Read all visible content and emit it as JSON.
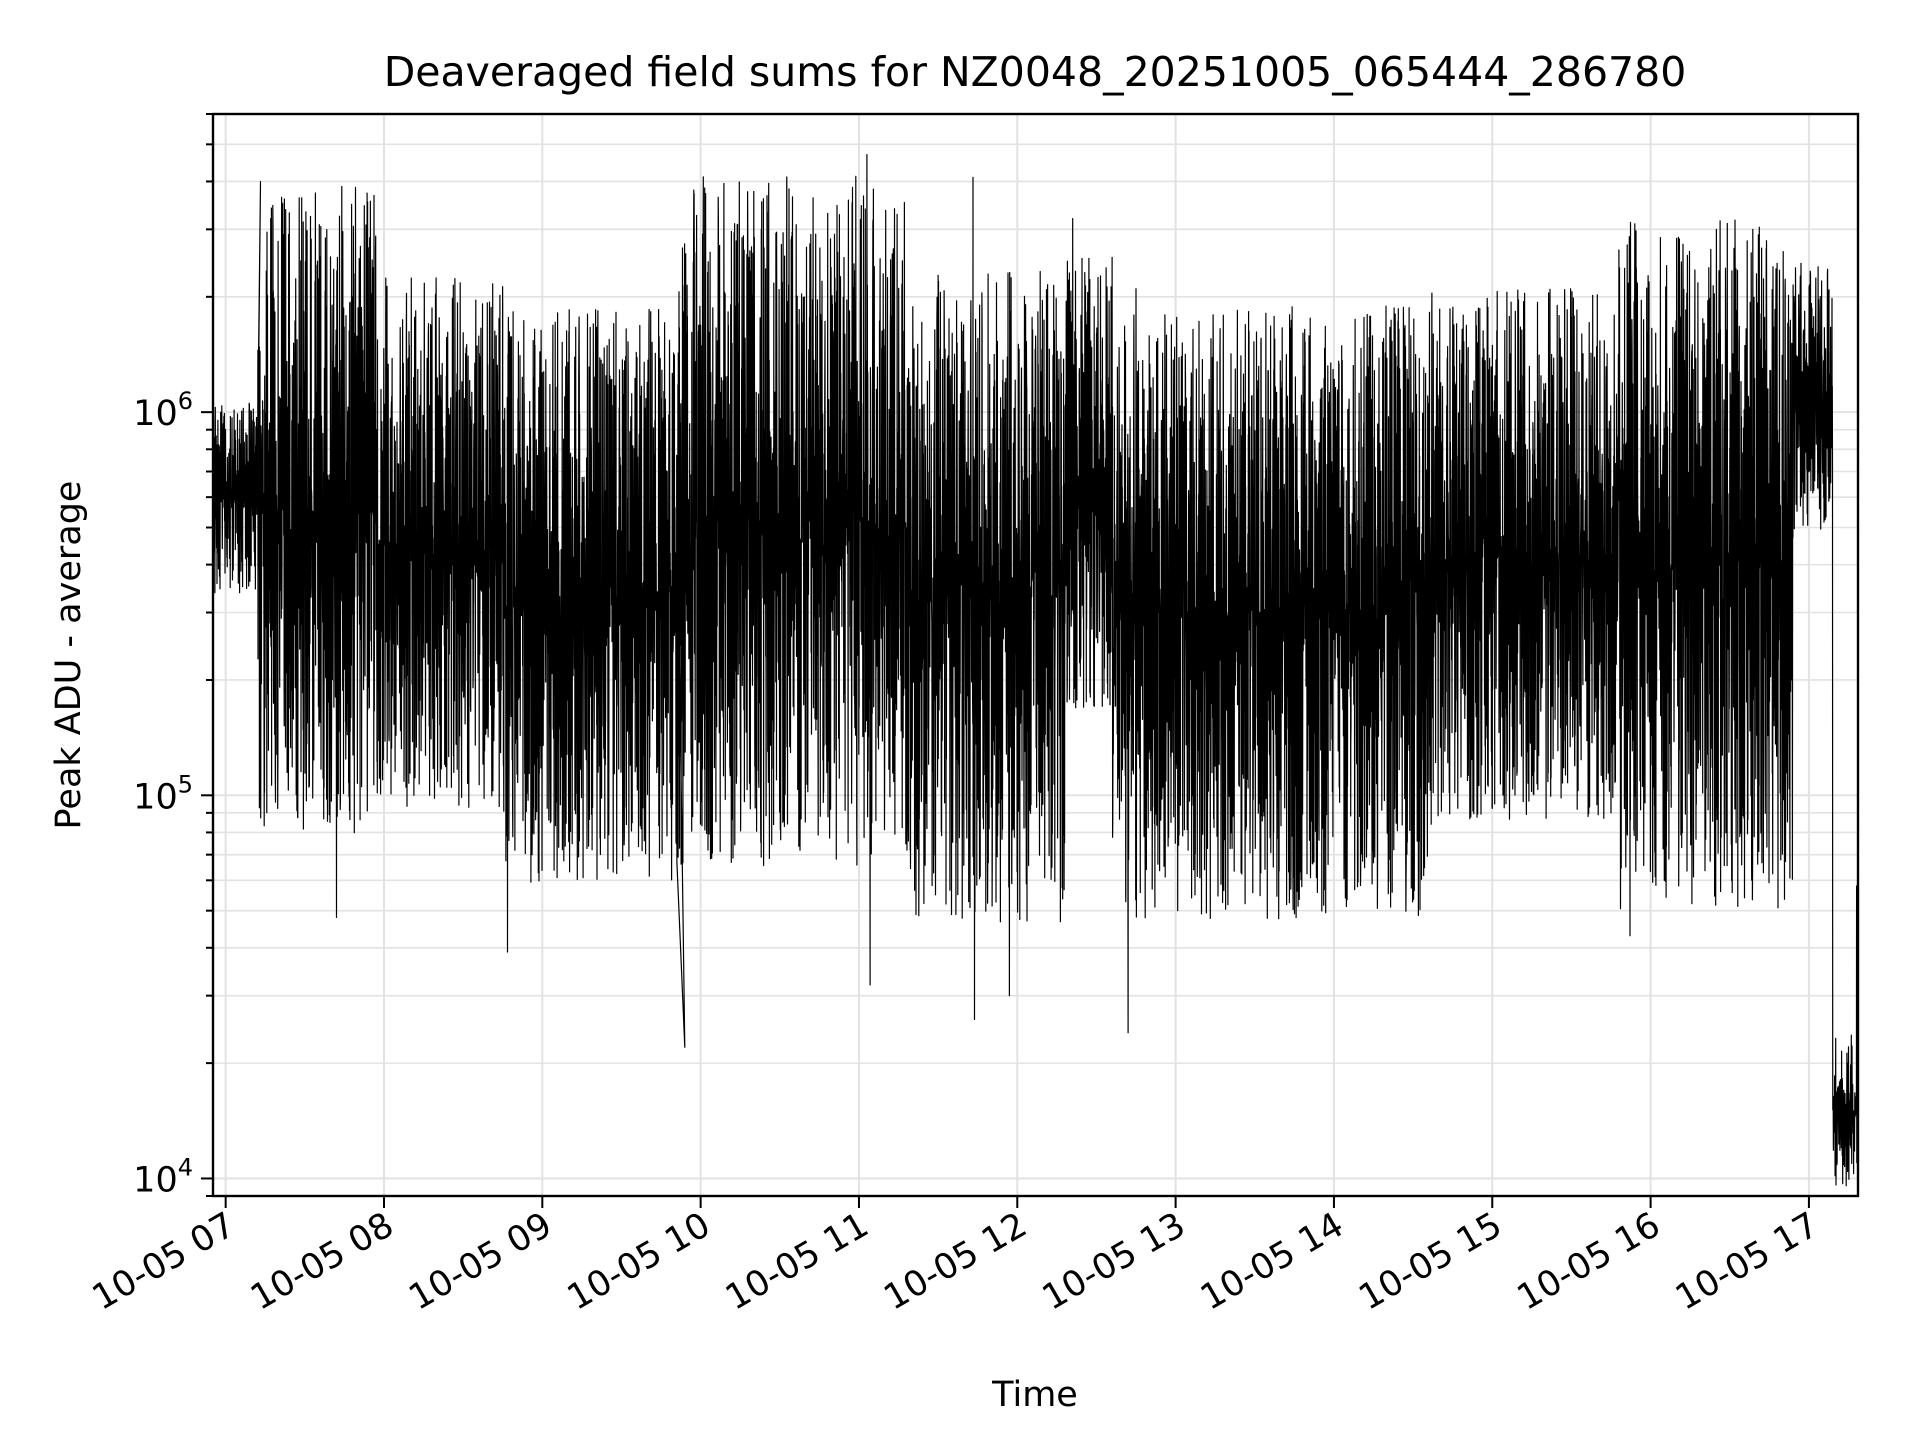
{
  "chart_data": {
    "type": "line",
    "title": "Deaveraged field sums for NZ0048_20251005_065444_286780",
    "xlabel": "Time",
    "ylabel": "Peak ADU - average",
    "yscale": "log",
    "ylim": [
      9000,
      6000000
    ],
    "xlim_hours": [
      6.92,
      17.31
    ],
    "grid": true,
    "x_ticks": [
      {
        "hour": 7,
        "label": "10-05 07"
      },
      {
        "hour": 8,
        "label": "10-05 08"
      },
      {
        "hour": 9,
        "label": "10-05 09"
      },
      {
        "hour": 10,
        "label": "10-05 10"
      },
      {
        "hour": 11,
        "label": "10-05 11"
      },
      {
        "hour": 12,
        "label": "10-05 12"
      },
      {
        "hour": 13,
        "label": "10-05 13"
      },
      {
        "hour": 14,
        "label": "10-05 14"
      },
      {
        "hour": 15,
        "label": "10-05 15"
      },
      {
        "hour": 16,
        "label": "10-05 16"
      },
      {
        "hour": 17,
        "label": "10-05 17"
      }
    ],
    "y_ticks": [
      {
        "value": 10000,
        "base": "10",
        "exp": "4"
      },
      {
        "value": 100000,
        "base": "10",
        "exp": "5"
      },
      {
        "value": 1000000,
        "base": "10",
        "exp": "6"
      }
    ],
    "series": [
      {
        "name": "Peak ADU - average",
        "color": "#000000",
        "segments": [
          {
            "start": 6.92,
            "end": 7.2,
            "median": 600000,
            "spread": 0.25,
            "spikes": [
              {
                "hour": 7.22,
                "value": 4000000
              }
            ]
          },
          {
            "start": 7.2,
            "end": 7.95,
            "median": 550000,
            "spread": 0.85,
            "spikes": [
              {
                "hour": 7.7,
                "value": 48000
              },
              {
                "hour": 7.9,
                "value": 1450000
              }
            ]
          },
          {
            "start": 7.95,
            "end": 8.75,
            "median": 450000,
            "spread": 0.7,
            "spikes": [
              {
                "hour": 8.35,
                "value": 1250000
              },
              {
                "hour": 8.75,
                "value": 1900000
              }
            ]
          },
          {
            "start": 8.75,
            "end": 9.85,
            "median": 330000,
            "spread": 0.75,
            "spikes": [
              {
                "hour": 8.78,
                "value": 39000
              },
              {
                "hour": 9.17,
                "value": 1850000
              },
              {
                "hour": 9.9,
                "value": 22000
              }
            ]
          },
          {
            "start": 9.85,
            "end": 11.3,
            "median": 520000,
            "spread": 0.9,
            "spikes": [
              {
                "hour": 10.33,
                "value": 2600000
              },
              {
                "hour": 11.05,
                "value": 4700000
              },
              {
                "hour": 11.07,
                "value": 32000
              },
              {
                "hour": 11.2,
                "value": 2500000
              }
            ]
          },
          {
            "start": 11.3,
            "end": 12.3,
            "median": 330000,
            "spread": 0.85,
            "spikes": [
              {
                "hour": 11.72,
                "value": 4100000
              },
              {
                "hour": 11.73,
                "value": 26000
              },
              {
                "hour": 11.95,
                "value": 30000
              }
            ]
          },
          {
            "start": 12.3,
            "end": 12.6,
            "median": 650000,
            "spread": 0.6,
            "spikes": [
              {
                "hour": 12.35,
                "value": 3200000
              }
            ]
          },
          {
            "start": 12.6,
            "end": 14.6,
            "median": 300000,
            "spread": 0.8,
            "spikes": [
              {
                "hour": 12.7,
                "value": 24000
              },
              {
                "hour": 12.75,
                "value": 2100000
              }
            ]
          },
          {
            "start": 14.6,
            "end": 15.8,
            "median": 420000,
            "spread": 0.7,
            "spikes": [
              {
                "hour": 15.1,
                "value": 1200000
              }
            ]
          },
          {
            "start": 15.8,
            "end": 16.9,
            "median": 400000,
            "spread": 0.9,
            "spikes": [
              {
                "hour": 15.87,
                "value": 43000
              }
            ]
          },
          {
            "start": 16.9,
            "end": 17.15,
            "median": 1100000,
            "spread": 0.35,
            "spikes": [
              {
                "hour": 17.08,
                "value": 2200000
              }
            ]
          },
          {
            "start": 17.15,
            "end": 17.31,
            "median": 15000,
            "spread": 0.2,
            "spikes": [
              {
                "hour": 17.3,
                "value": 58000
              }
            ]
          }
        ]
      }
    ]
  }
}
